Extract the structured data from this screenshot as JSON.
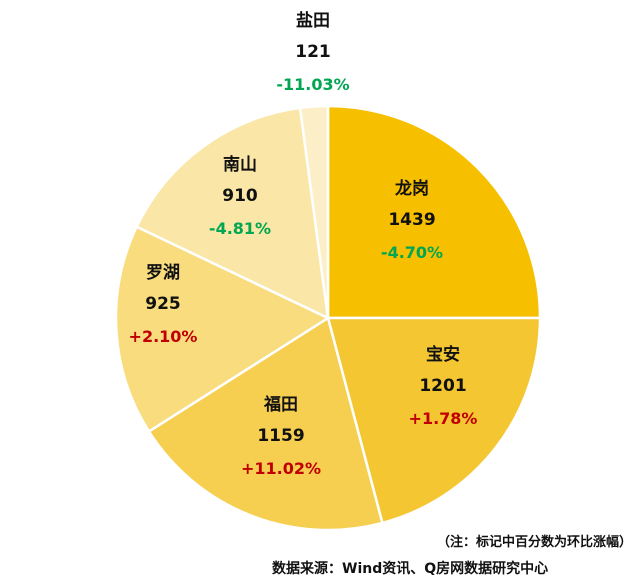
{
  "chart_data": {
    "type": "pie",
    "title": "",
    "slices": [
      {
        "name": "龙岗",
        "value": 1439,
        "change": "-4.70%",
        "color": "#F6BF00"
      },
      {
        "name": "宝安",
        "value": 1201,
        "change": "+1.78%",
        "color": "#F4C631"
      },
      {
        "name": "福田",
        "value": 1159,
        "change": "+11.02%",
        "color": "#F6CF51"
      },
      {
        "name": "罗湖",
        "value": 925,
        "change": "+2.10%",
        "color": "#F8DC7E"
      },
      {
        "name": "南山",
        "value": 910,
        "change": "-4.81%",
        "color": "#FAE6A6"
      },
      {
        "name": "盐田",
        "value": 121,
        "change": "-11.03%",
        "color": "#FCEFC8"
      }
    ],
    "positive_color": "#C00000",
    "negative_color": "#00A651"
  },
  "footer": {
    "note": "（注：标记中百分数为环比涨幅）",
    "source": "数据来源：Wind资讯、Q房网数据研究中心",
    "watermark": "Q房网数据研究中心"
  }
}
